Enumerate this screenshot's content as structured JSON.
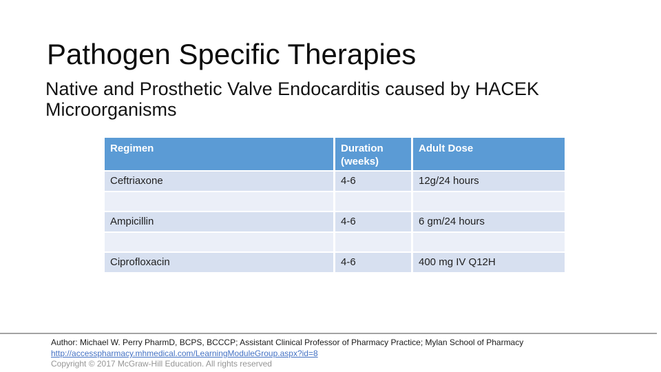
{
  "slide": {
    "title": "Pathogen Specific Therapies",
    "subtitle": "Native and Prosthetic Valve Endocarditis caused by HACEK Microorganisms"
  },
  "table": {
    "headers": [
      "Regimen",
      "Duration (weeks)",
      "Adult Dose"
    ],
    "rows": [
      {
        "regimen": "Ceftriaxone",
        "duration": "4-6",
        "dose": "12g/24 hours"
      },
      {
        "regimen": "Ampicillin",
        "duration": "4-6",
        "dose": "6 gm/24 hours"
      },
      {
        "regimen": "Ciprofloxacin",
        "duration": "4-6",
        "dose": "400 mg IV Q12H"
      }
    ]
  },
  "footer": {
    "author": "Author: Michael W. Perry PharmD, BCPS, BCCCP; Assistant Clinical Professor of Pharmacy Practice; Mylan School of Pharmacy",
    "link": "http://accesspharmacy.mhmedical.com/LearningModuleGroup.aspx?id=8",
    "copyright": "Copyright © 2017 McGraw-Hill Education. All rights reserved"
  },
  "colors": {
    "table_header_bg": "#5B9BD5",
    "table_header_text": "#FFFFFF",
    "table_row_bg": "#D7E0F0",
    "table_spacer_bg": "#EBEFF8",
    "link": "#4472C4",
    "copyright_text": "#959595",
    "divider": "#A3A3A3"
  }
}
